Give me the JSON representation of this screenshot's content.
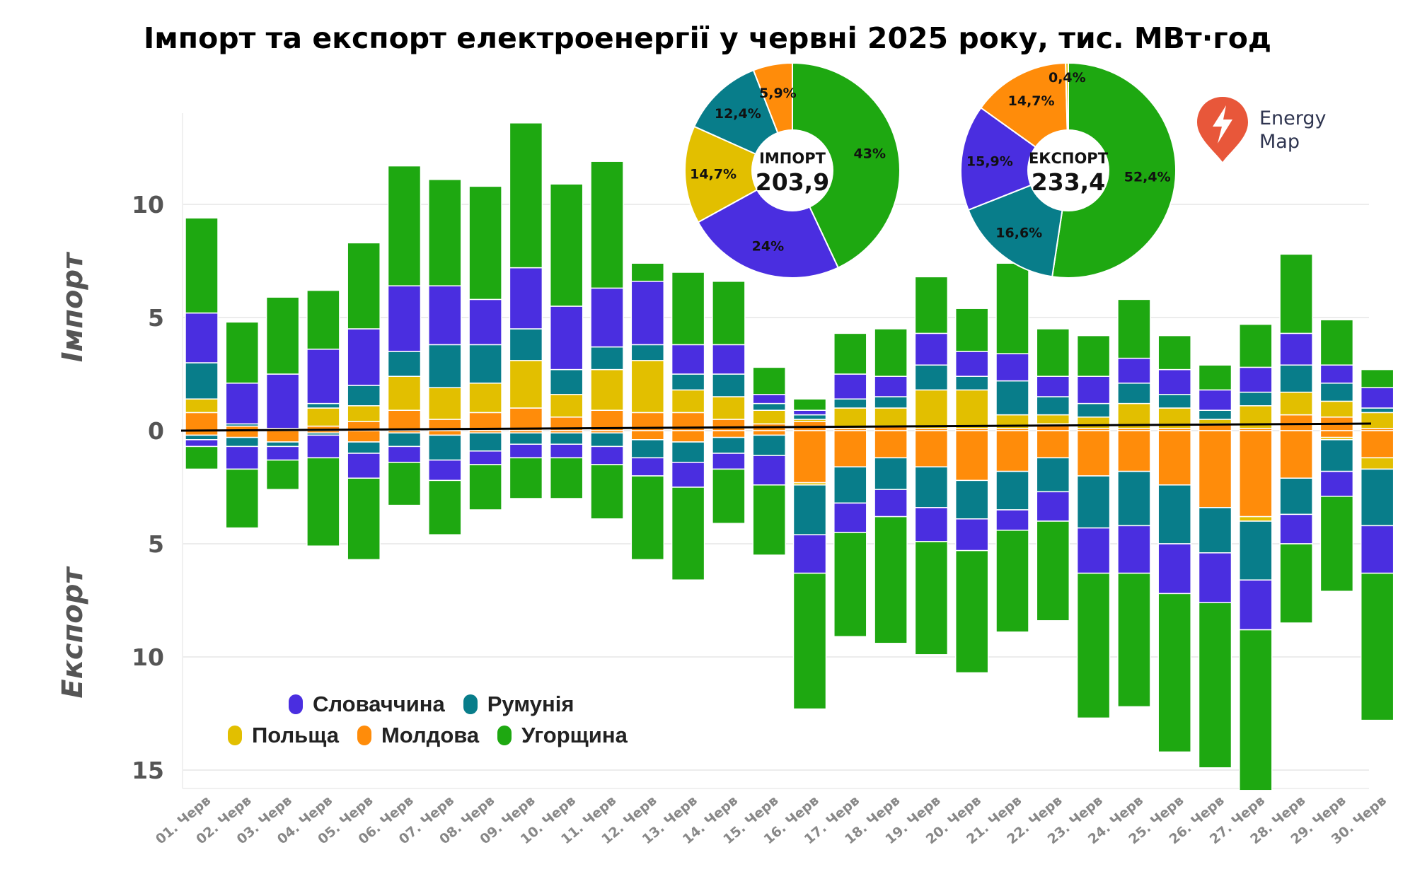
{
  "chart_data": {
    "type": "bar",
    "stacked": true,
    "title": "Імпорт та експорт електроенергії у червні 2025 року, тис. МВт·год",
    "ylabel_top": "Імпорт",
    "ylabel_bottom": "Експорт",
    "ylim": [
      -15.8,
      14
    ],
    "yticks": [
      {
        "value": 10,
        "label": "10"
      },
      {
        "value": 5,
        "label": "5"
      },
      {
        "value": 0,
        "label": "0"
      },
      {
        "value": -5,
        "label": "5"
      },
      {
        "value": -10,
        "label": "10"
      },
      {
        "value": -15,
        "label": "15"
      }
    ],
    "grid": true,
    "legend_position": "bottom-left",
    "categories": [
      "01. Черв",
      "02. Черв",
      "03. Черв",
      "04. Черв",
      "05. Черв",
      "06. Черв",
      "07. Черв",
      "08. Черв",
      "09. Черв",
      "10. Черв",
      "11. Черв",
      "12. Черв",
      "13. Черв",
      "14. Черв",
      "15. Черв",
      "16. Черв",
      "17. Черв",
      "18. Черв",
      "19. Черв",
      "20. Черв",
      "21. Черв",
      "22. Черв",
      "23. Черв",
      "24. Черв",
      "25. Черв",
      "26. Черв",
      "27. Черв",
      "28. Черв",
      "29. Черв",
      "30. Черв"
    ],
    "series": [
      {
        "name": "Молдова",
        "color": "#ff8c0a",
        "import": [
          0.8,
          0.2,
          0.1,
          0.2,
          0.4,
          0.9,
          0.5,
          0.8,
          1.0,
          0.6,
          0.9,
          0.8,
          0.8,
          0.5,
          0.3,
          0.4,
          0.1,
          0.2,
          0.1,
          0.1,
          0.1,
          0.3,
          0.1,
          0.1,
          0.1,
          0.3,
          0.1,
          0.7,
          0.6,
          0.1
        ],
        "export": [
          0.2,
          0.3,
          0.5,
          0.1,
          0.5,
          0.1,
          0.2,
          0.1,
          0.1,
          0.1,
          0.1,
          0.4,
          0.5,
          0.3,
          0.2,
          2.3,
          1.6,
          1.2,
          1.6,
          2.2,
          1.8,
          1.2,
          2.0,
          1.8,
          2.4,
          3.4,
          3.8,
          2.1,
          0.3,
          1.2
        ]
      },
      {
        "name": "Польща",
        "color": "#e2bf00",
        "import": [
          0.6,
          0.0,
          0.0,
          0.8,
          0.7,
          1.5,
          1.4,
          1.3,
          2.1,
          1.0,
          1.8,
          2.3,
          1.0,
          1.0,
          0.6,
          0.1,
          0.9,
          0.8,
          1.7,
          1.7,
          0.6,
          0.4,
          0.5,
          1.1,
          0.9,
          0.2,
          1.0,
          1.0,
          0.7,
          0.7
        ],
        "export": [
          0.0,
          0.0,
          0.0,
          0.0,
          0.0,
          0.0,
          0.0,
          0.0,
          0.0,
          0.0,
          0.0,
          0.0,
          0.0,
          0.0,
          0.0,
          0.1,
          0.0,
          0.0,
          0.0,
          0.0,
          0.0,
          0.0,
          0.0,
          0.0,
          0.0,
          0.0,
          0.2,
          0.0,
          0.1,
          0.5
        ]
      },
      {
        "name": "Румунія",
        "color": "#087d8a",
        "import": [
          1.6,
          0.1,
          0.0,
          0.2,
          0.9,
          1.1,
          1.9,
          1.7,
          1.4,
          1.1,
          1.0,
          0.7,
          0.7,
          1.0,
          0.3,
          0.2,
          0.4,
          0.5,
          1.1,
          0.6,
          1.5,
          0.8,
          0.6,
          0.9,
          0.6,
          0.4,
          0.6,
          1.2,
          0.8,
          0.2
        ],
        "export": [
          0.2,
          0.4,
          0.2,
          0.1,
          0.5,
          0.6,
          1.1,
          0.8,
          0.5,
          0.5,
          0.6,
          0.8,
          0.9,
          0.7,
          0.9,
          2.2,
          1.6,
          1.4,
          1.8,
          1.7,
          1.7,
          1.5,
          2.3,
          2.4,
          2.6,
          2.0,
          2.6,
          1.6,
          1.4,
          2.5
        ]
      },
      {
        "name": "Словаччина",
        "color": "#4a2ee0",
        "import": [
          2.2,
          1.8,
          2.4,
          2.4,
          2.5,
          2.9,
          2.6,
          2.0,
          2.7,
          2.8,
          2.6,
          2.8,
          1.3,
          1.3,
          0.4,
          0.2,
          1.1,
          0.9,
          1.4,
          1.1,
          1.2,
          0.9,
          1.2,
          1.1,
          1.1,
          0.9,
          1.1,
          1.4,
          0.8,
          0.9
        ],
        "export": [
          0.3,
          1.0,
          0.6,
          1.0,
          1.1,
          0.7,
          0.9,
          0.6,
          0.6,
          0.6,
          0.8,
          0.8,
          1.1,
          0.7,
          1.3,
          1.7,
          1.3,
          1.2,
          1.5,
          1.4,
          0.9,
          1.3,
          2.0,
          2.1,
          2.2,
          2.2,
          2.2,
          1.3,
          1.1,
          2.1
        ]
      },
      {
        "name": "Угорщина",
        "color": "#1ea811",
        "import": [
          4.2,
          2.7,
          3.4,
          2.6,
          3.8,
          5.3,
          4.7,
          5.0,
          6.4,
          5.4,
          5.6,
          0.8,
          3.2,
          2.8,
          1.2,
          0.5,
          1.8,
          2.1,
          2.5,
          1.9,
          4.0,
          2.1,
          1.8,
          2.6,
          1.5,
          1.1,
          1.9,
          3.5,
          2.0,
          0.8
        ],
        "export": [
          1.0,
          2.6,
          1.3,
          3.9,
          3.6,
          1.9,
          2.4,
          2.0,
          1.8,
          1.8,
          2.4,
          3.7,
          4.1,
          2.4,
          3.1,
          6.0,
          4.6,
          5.6,
          5.0,
          5.4,
          4.5,
          4.4,
          6.4,
          5.9,
          7.0,
          7.3,
          7.1,
          3.5,
          4.2,
          6.5
        ]
      }
    ],
    "pies": [
      {
        "center_label": "ІМПОРТ",
        "center_value": "203,9",
        "slices": [
          {
            "name": "Угорщина",
            "value": 43,
            "label": "43%",
            "color": "#1ea811"
          },
          {
            "name": "Словаччина",
            "value": 24,
            "label": "24%",
            "color": "#4a2ee0"
          },
          {
            "name": "Польща",
            "value": 14.7,
            "label": "14,7%",
            "color": "#e2bf00"
          },
          {
            "name": "Румунія",
            "value": 12.4,
            "label": "12,4%",
            "color": "#087d8a"
          },
          {
            "name": "Молдова",
            "value": 5.9,
            "label": "5,9%",
            "color": "#ff8c0a"
          }
        ]
      },
      {
        "center_label": "ЕКСПОРТ",
        "center_value": "233,4",
        "slices": [
          {
            "name": "Угорщина",
            "value": 52.4,
            "label": "52,4%",
            "color": "#1ea811"
          },
          {
            "name": "Румунія",
            "value": 16.6,
            "label": "16,6%",
            "color": "#087d8a"
          },
          {
            "name": "Словаччина",
            "value": 15.9,
            "label": "15,9%",
            "color": "#4a2ee0"
          },
          {
            "name": "Молдова",
            "value": 14.7,
            "label": "14,7%",
            "color": "#ff8c0a"
          },
          {
            "name": "Польща",
            "value": 0.4,
            "label": "0,4%",
            "color": "#e2bf00"
          }
        ]
      }
    ]
  },
  "legend": {
    "row1": [
      {
        "label": "Словаччина",
        "color": "#4a2ee0"
      },
      {
        "label": "Румунія",
        "color": "#087d8a"
      }
    ],
    "row2": [
      {
        "label": "Польща",
        "color": "#e2bf00"
      },
      {
        "label": "Молдова",
        "color": "#ff8c0a"
      },
      {
        "label": "Угорщина",
        "color": "#1ea811"
      }
    ]
  },
  "logo": {
    "line1": "Energy",
    "line2": "Map",
    "color": "#e8573a",
    "icon": "lightning-pin-icon"
  }
}
